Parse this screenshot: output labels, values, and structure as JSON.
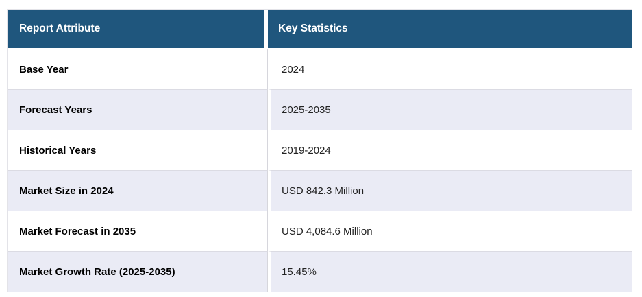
{
  "table": {
    "columns": {
      "attribute_header": "Report Attribute",
      "statistics_header": "Key Statistics"
    },
    "rows": [
      {
        "attribute": "Base Year",
        "value": "2024"
      },
      {
        "attribute": "Forecast Years",
        "value": "2025-2035"
      },
      {
        "attribute": "Historical Years",
        "value": "2019-2024"
      },
      {
        "attribute": "Market Size in 2024",
        "value": "USD 842.3 Million"
      },
      {
        "attribute": "Market Forecast in 2035",
        "value": "USD 4,084.6 Million"
      },
      {
        "attribute": "Market Growth Rate (2025-2035)",
        "value": "15.45%"
      }
    ],
    "colors": {
      "header_background": "#1f567d",
      "header_text": "#ffffff",
      "row_background": "#ffffff",
      "row_alt_background": "#eaebf5",
      "border": "#dbdbe3",
      "attribute_text": "#000000",
      "value_text": "#222222"
    }
  }
}
